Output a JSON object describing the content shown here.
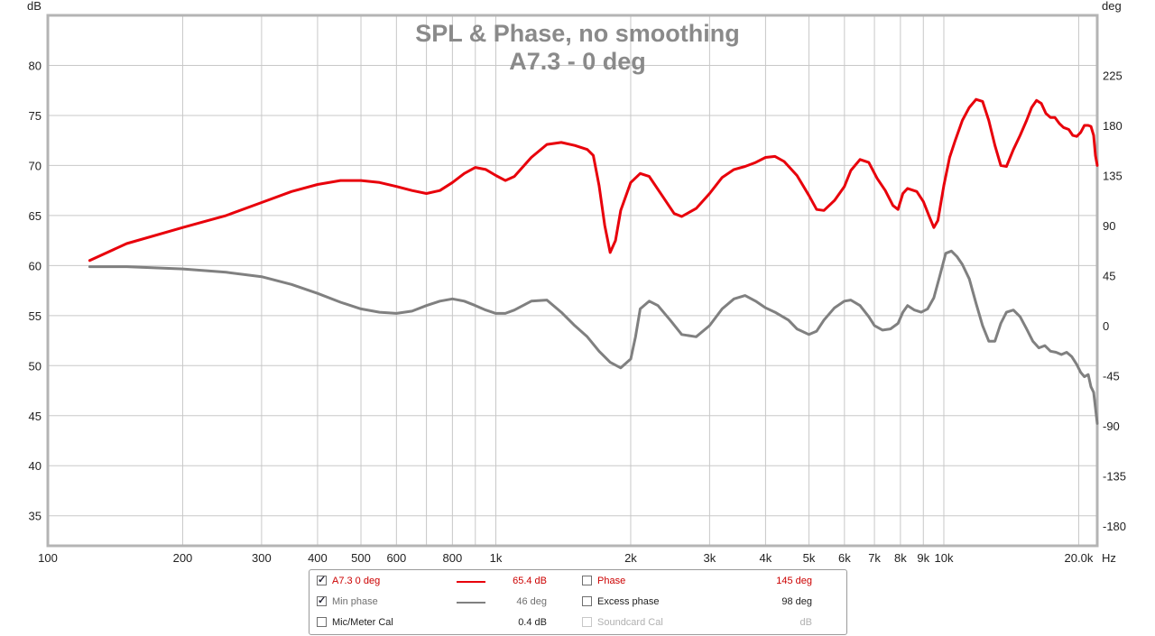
{
  "chart_data": {
    "type": "line",
    "title": "SPL & Phase, no smoothing",
    "subtitle": "A7.3 - 0 deg",
    "xlabel": "Hz",
    "ylabel_left": "dB",
    "ylabel_right": "deg",
    "xscale": "log",
    "xlim": [
      100,
      22000
    ],
    "ylim_left": [
      32,
      85
    ],
    "ylim_right": [
      -198,
      279
    ],
    "grid": true,
    "x_ticks": [
      {
        "value": 100,
        "label": "100"
      },
      {
        "value": 200,
        "label": "200"
      },
      {
        "value": 300,
        "label": "300"
      },
      {
        "value": 400,
        "label": "400"
      },
      {
        "value": 500,
        "label": "500"
      },
      {
        "value": 600,
        "label": "600"
      },
      {
        "value": 800,
        "label": "800"
      },
      {
        "value": 1000,
        "label": "1k"
      },
      {
        "value": 2000,
        "label": "2k"
      },
      {
        "value": 3000,
        "label": "3k"
      },
      {
        "value": 4000,
        "label": "4k"
      },
      {
        "value": 5000,
        "label": "5k"
      },
      {
        "value": 6000,
        "label": "6k"
      },
      {
        "value": 7000,
        "label": "7k"
      },
      {
        "value": 8000,
        "label": "8k"
      },
      {
        "value": 9000,
        "label": "9k"
      },
      {
        "value": 10000,
        "label": "10k"
      },
      {
        "value": 20000,
        "label": "20.0k"
      }
    ],
    "minor_x_gridlines": [
      700,
      900
    ],
    "y_ticks_left": [
      "35",
      "40",
      "45",
      "50",
      "55",
      "60",
      "65",
      "70",
      "75",
      "80"
    ],
    "y_ticks_right": [
      "-180",
      "-135",
      "-90",
      "-45",
      "0",
      "45",
      "90",
      "135",
      "180",
      "225"
    ],
    "series": [
      {
        "name": "A7.3 0 deg",
        "axis": "left",
        "unit": "dB",
        "color": "#e8000b",
        "points": [
          [
            124,
            60.5
          ],
          [
            150,
            62.2
          ],
          [
            200,
            63.8
          ],
          [
            250,
            65.0
          ],
          [
            300,
            66.3
          ],
          [
            350,
            67.4
          ],
          [
            400,
            68.1
          ],
          [
            450,
            68.5
          ],
          [
            500,
            68.5
          ],
          [
            550,
            68.3
          ],
          [
            600,
            67.9
          ],
          [
            650,
            67.5
          ],
          [
            700,
            67.2
          ],
          [
            750,
            67.5
          ],
          [
            800,
            68.3
          ],
          [
            850,
            69.2
          ],
          [
            900,
            69.8
          ],
          [
            950,
            69.6
          ],
          [
            1000,
            69.0
          ],
          [
            1050,
            68.5
          ],
          [
            1100,
            68.9
          ],
          [
            1200,
            70.8
          ],
          [
            1300,
            72.1
          ],
          [
            1400,
            72.3
          ],
          [
            1500,
            72.0
          ],
          [
            1600,
            71.6
          ],
          [
            1650,
            71.0
          ],
          [
            1700,
            68.0
          ],
          [
            1750,
            64.0
          ],
          [
            1800,
            61.3
          ],
          [
            1850,
            62.5
          ],
          [
            1900,
            65.5
          ],
          [
            2000,
            68.3
          ],
          [
            2100,
            69.2
          ],
          [
            2200,
            68.9
          ],
          [
            2350,
            67.0
          ],
          [
            2500,
            65.2
          ],
          [
            2600,
            64.9
          ],
          [
            2800,
            65.7
          ],
          [
            3000,
            67.2
          ],
          [
            3200,
            68.8
          ],
          [
            3400,
            69.6
          ],
          [
            3600,
            69.9
          ],
          [
            3800,
            70.3
          ],
          [
            4000,
            70.8
          ],
          [
            4200,
            70.9
          ],
          [
            4400,
            70.4
          ],
          [
            4700,
            69.0
          ],
          [
            5000,
            67.0
          ],
          [
            5200,
            65.6
          ],
          [
            5400,
            65.5
          ],
          [
            5700,
            66.5
          ],
          [
            6000,
            67.9
          ],
          [
            6200,
            69.5
          ],
          [
            6500,
            70.6
          ],
          [
            6800,
            70.3
          ],
          [
            7100,
            68.7
          ],
          [
            7400,
            67.5
          ],
          [
            7700,
            66.0
          ],
          [
            7900,
            65.6
          ],
          [
            8100,
            67.2
          ],
          [
            8300,
            67.7
          ],
          [
            8700,
            67.4
          ],
          [
            9000,
            66.4
          ],
          [
            9300,
            64.8
          ],
          [
            9500,
            63.8
          ],
          [
            9700,
            64.5
          ],
          [
            10000,
            68.0
          ],
          [
            10300,
            70.8
          ],
          [
            10600,
            72.5
          ],
          [
            11000,
            74.5
          ],
          [
            11400,
            75.8
          ],
          [
            11800,
            76.6
          ],
          [
            12200,
            76.4
          ],
          [
            12600,
            74.5
          ],
          [
            13000,
            72.0
          ],
          [
            13400,
            70.0
          ],
          [
            13800,
            69.9
          ],
          [
            14300,
            71.6
          ],
          [
            14800,
            73.0
          ],
          [
            15300,
            74.5
          ],
          [
            15700,
            75.8
          ],
          [
            16100,
            76.5
          ],
          [
            16500,
            76.2
          ],
          [
            16900,
            75.2
          ],
          [
            17300,
            74.8
          ],
          [
            17700,
            74.8
          ],
          [
            18100,
            74.2
          ],
          [
            18500,
            73.8
          ],
          [
            19000,
            73.6
          ],
          [
            19400,
            73.0
          ],
          [
            19800,
            72.9
          ],
          [
            20200,
            73.3
          ],
          [
            20600,
            74.0
          ],
          [
            21000,
            74.0
          ],
          [
            21300,
            73.9
          ],
          [
            21600,
            73.0
          ],
          [
            21800,
            71.0
          ],
          [
            22000,
            70.0
          ]
        ]
      },
      {
        "name": "Min phase",
        "axis": "right",
        "unit": "deg",
        "color": "#808080",
        "points": [
          [
            124,
            53
          ],
          [
            150,
            53
          ],
          [
            200,
            51
          ],
          [
            250,
            48
          ],
          [
            300,
            44
          ],
          [
            350,
            37
          ],
          [
            400,
            29
          ],
          [
            450,
            21
          ],
          [
            500,
            15
          ],
          [
            550,
            12
          ],
          [
            600,
            11
          ],
          [
            650,
            13
          ],
          [
            700,
            18
          ],
          [
            750,
            22
          ],
          [
            800,
            24
          ],
          [
            850,
            22
          ],
          [
            900,
            18
          ],
          [
            950,
            14
          ],
          [
            1000,
            11
          ],
          [
            1050,
            11
          ],
          [
            1100,
            14
          ],
          [
            1200,
            22
          ],
          [
            1300,
            23
          ],
          [
            1400,
            12
          ],
          [
            1500,
            0
          ],
          [
            1600,
            -10
          ],
          [
            1700,
            -23
          ],
          [
            1800,
            -33
          ],
          [
            1900,
            -38
          ],
          [
            2000,
            -30
          ],
          [
            2050,
            -10
          ],
          [
            2100,
            15
          ],
          [
            2200,
            22
          ],
          [
            2300,
            18
          ],
          [
            2450,
            5
          ],
          [
            2600,
            -8
          ],
          [
            2800,
            -10
          ],
          [
            3000,
            0
          ],
          [
            3200,
            15
          ],
          [
            3400,
            24
          ],
          [
            3600,
            27
          ],
          [
            3800,
            22
          ],
          [
            4000,
            16
          ],
          [
            4200,
            12
          ],
          [
            4500,
            5
          ],
          [
            4700,
            -3
          ],
          [
            5000,
            -8
          ],
          [
            5200,
            -5
          ],
          [
            5400,
            5
          ],
          [
            5700,
            16
          ],
          [
            6000,
            22
          ],
          [
            6200,
            23
          ],
          [
            6500,
            18
          ],
          [
            6800,
            8
          ],
          [
            7000,
            0
          ],
          [
            7300,
            -4
          ],
          [
            7600,
            -3
          ],
          [
            7900,
            2
          ],
          [
            8100,
            12
          ],
          [
            8300,
            18
          ],
          [
            8600,
            14
          ],
          [
            8900,
            12
          ],
          [
            9200,
            15
          ],
          [
            9500,
            25
          ],
          [
            9800,
            45
          ],
          [
            10100,
            65
          ],
          [
            10400,
            67
          ],
          [
            10700,
            62
          ],
          [
            11000,
            55
          ],
          [
            11400,
            42
          ],
          [
            11800,
            20
          ],
          [
            12200,
            0
          ],
          [
            12600,
            -14
          ],
          [
            13000,
            -14
          ],
          [
            13400,
            2
          ],
          [
            13800,
            12
          ],
          [
            14300,
            14
          ],
          [
            14800,
            8
          ],
          [
            15300,
            -3
          ],
          [
            15800,
            -14
          ],
          [
            16300,
            -20
          ],
          [
            16800,
            -18
          ],
          [
            17300,
            -23
          ],
          [
            17800,
            -24
          ],
          [
            18300,
            -26
          ],
          [
            18800,
            -24
          ],
          [
            19300,
            -28
          ],
          [
            19800,
            -35
          ],
          [
            20200,
            -42
          ],
          [
            20600,
            -46
          ],
          [
            21000,
            -44
          ],
          [
            21300,
            -55
          ],
          [
            21600,
            -60
          ],
          [
            21800,
            -74
          ],
          [
            22000,
            -88
          ]
        ]
      }
    ]
  },
  "legend": {
    "rows": [
      {
        "left": {
          "label": "A7.3 0 deg",
          "checked": true,
          "value": "65.4 dB",
          "swatch": "#e8000b",
          "text_color": "#cc0000",
          "value_color": "#cc0000",
          "disabled": false
        },
        "right": {
          "label": "Phase",
          "checked": false,
          "value": "145 deg",
          "text_color": "#cc0000",
          "value_color": "#cc0000",
          "disabled": false
        }
      },
      {
        "left": {
          "label": "Min phase",
          "checked": true,
          "value": "46 deg",
          "swatch": "#808080",
          "text_color": "#707070",
          "value_color": "#707070",
          "disabled": false
        },
        "right": {
          "label": "Excess phase",
          "checked": false,
          "value": "98 deg",
          "text_color": "#222222",
          "value_color": "#222222",
          "disabled": false
        }
      },
      {
        "left": {
          "label": "Mic/Meter Cal",
          "checked": false,
          "value": "0.4 dB",
          "swatch": "",
          "text_color": "#222222",
          "value_color": "#222222",
          "disabled": false
        },
        "right": {
          "label": "Soundcard Cal",
          "checked": false,
          "value": "dB",
          "text_color": "#b0b0b0",
          "value_color": "#b0b0b0",
          "disabled": true
        }
      }
    ]
  }
}
